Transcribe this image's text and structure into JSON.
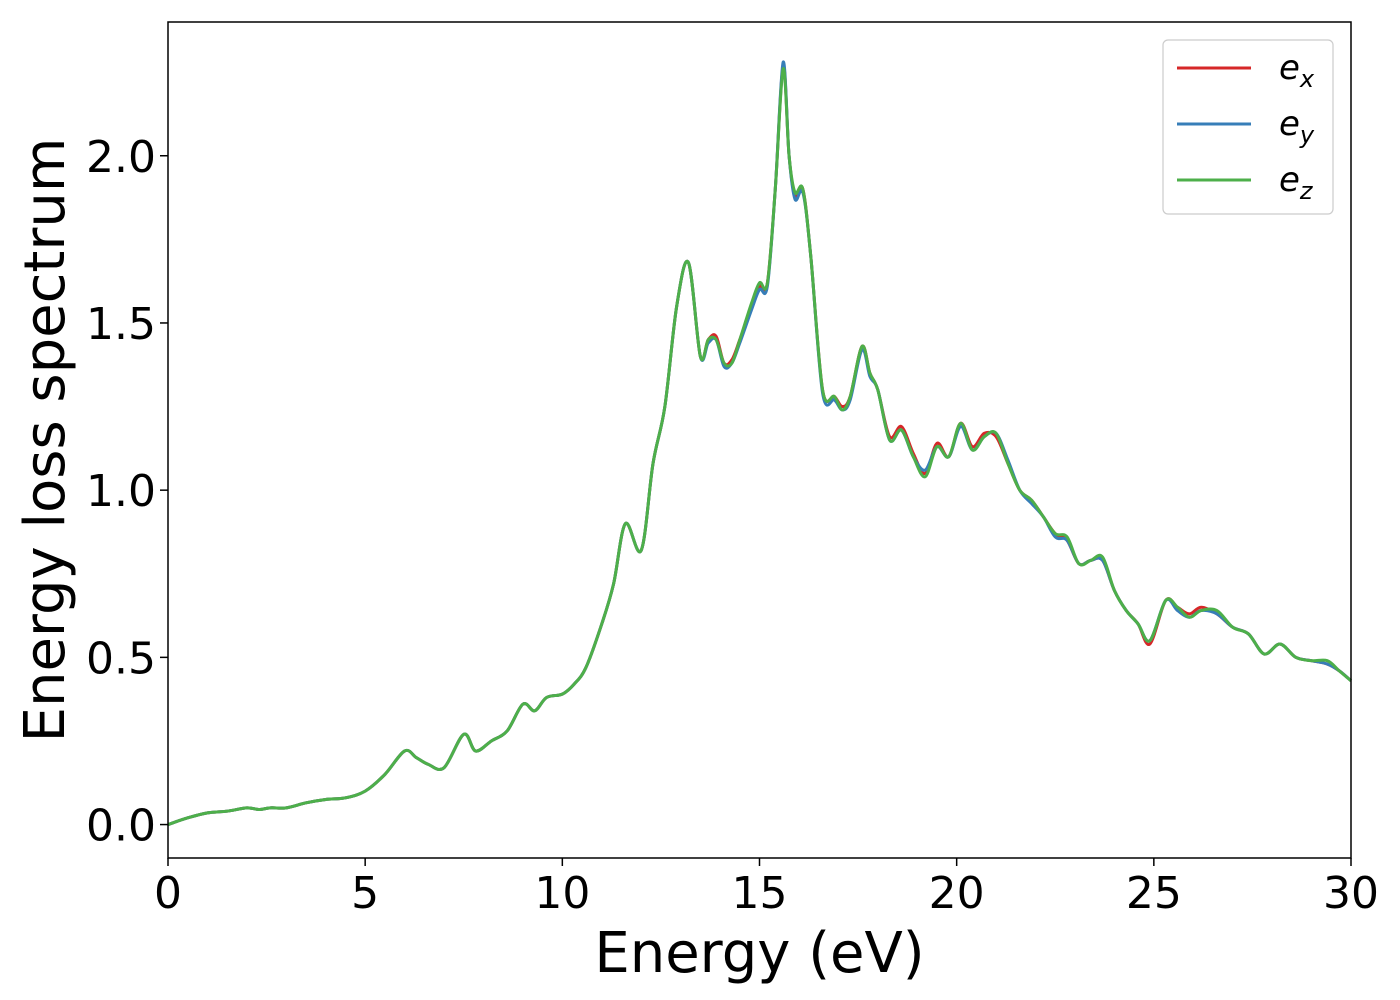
{
  "chart_data": {
    "type": "line",
    "title": "",
    "xlabel": "Energy (eV)",
    "ylabel": "Energy loss spectrum",
    "xlim": [
      0,
      30
    ],
    "ylim": [
      -0.1,
      2.4
    ],
    "xticks": [
      0,
      5,
      10,
      15,
      20,
      25,
      30
    ],
    "xtick_labels": [
      "0",
      "5",
      "10",
      "15",
      "20",
      "25",
      "30"
    ],
    "yticks": [
      0.0,
      0.5,
      1.0,
      1.5,
      2.0
    ],
    "ytick_labels": [
      "0.0",
      "0.5",
      "1.0",
      "1.5",
      "2.0"
    ],
    "grid": false,
    "legend_position": "top-right",
    "x": [
      0,
      0.5,
      1.0,
      1.5,
      2.0,
      2.3,
      2.6,
      3.0,
      3.5,
      4.0,
      4.5,
      5.0,
      5.5,
      6.0,
      6.3,
      6.6,
      7.0,
      7.5,
      7.8,
      8.2,
      8.6,
      9.0,
      9.3,
      9.6,
      10.0,
      10.3,
      10.6,
      11.0,
      11.3,
      11.6,
      12.0,
      12.3,
      12.6,
      12.9,
      13.2,
      13.5,
      13.7,
      13.9,
      14.1,
      14.3,
      14.5,
      14.8,
      15.0,
      15.2,
      15.4,
      15.6,
      15.75,
      15.9,
      16.1,
      16.3,
      16.6,
      16.9,
      17.1,
      17.3,
      17.6,
      17.8,
      18.0,
      18.3,
      18.6,
      18.9,
      19.2,
      19.5,
      19.8,
      20.1,
      20.4,
      20.7,
      21.0,
      21.3,
      21.6,
      21.9,
      22.2,
      22.5,
      22.8,
      23.1,
      23.4,
      23.7,
      24.0,
      24.3,
      24.6,
      24.9,
      25.3,
      25.6,
      25.9,
      26.2,
      26.6,
      27.0,
      27.4,
      27.8,
      28.2,
      28.6,
      29.0,
      29.4,
      29.7,
      30.0
    ],
    "series": [
      {
        "name": "e_x",
        "color": "#d62728",
        "values": [
          0.0,
          0.02,
          0.035,
          0.04,
          0.05,
          0.045,
          0.05,
          0.05,
          0.065,
          0.075,
          0.08,
          0.1,
          0.15,
          0.22,
          0.2,
          0.18,
          0.17,
          0.27,
          0.22,
          0.25,
          0.28,
          0.36,
          0.34,
          0.38,
          0.39,
          0.42,
          0.47,
          0.6,
          0.72,
          0.9,
          0.82,
          1.08,
          1.25,
          1.55,
          1.68,
          1.4,
          1.45,
          1.46,
          1.38,
          1.39,
          1.45,
          1.55,
          1.61,
          1.62,
          1.9,
          2.27,
          2.0,
          1.88,
          1.9,
          1.7,
          1.3,
          1.28,
          1.25,
          1.28,
          1.43,
          1.35,
          1.3,
          1.16,
          1.19,
          1.11,
          1.05,
          1.14,
          1.1,
          1.2,
          1.13,
          1.17,
          1.16,
          1.08,
          1.0,
          0.97,
          0.92,
          0.87,
          0.85,
          0.78,
          0.79,
          0.79,
          0.7,
          0.64,
          0.6,
          0.54,
          0.67,
          0.65,
          0.63,
          0.65,
          0.63,
          0.59,
          0.57,
          0.51,
          0.54,
          0.5,
          0.49,
          0.48,
          0.46,
          0.43
        ]
      },
      {
        "name": "e_y",
        "color": "#377eb8",
        "values": [
          0.0,
          0.02,
          0.035,
          0.04,
          0.05,
          0.045,
          0.05,
          0.05,
          0.065,
          0.075,
          0.08,
          0.1,
          0.15,
          0.22,
          0.2,
          0.18,
          0.17,
          0.27,
          0.22,
          0.25,
          0.28,
          0.36,
          0.34,
          0.38,
          0.39,
          0.42,
          0.47,
          0.6,
          0.72,
          0.9,
          0.82,
          1.08,
          1.25,
          1.55,
          1.68,
          1.4,
          1.44,
          1.45,
          1.37,
          1.38,
          1.44,
          1.54,
          1.6,
          1.61,
          1.9,
          2.28,
          2.0,
          1.87,
          1.89,
          1.7,
          1.29,
          1.27,
          1.24,
          1.27,
          1.42,
          1.34,
          1.3,
          1.15,
          1.18,
          1.1,
          1.06,
          1.13,
          1.1,
          1.19,
          1.12,
          1.16,
          1.17,
          1.09,
          1.0,
          0.96,
          0.92,
          0.86,
          0.85,
          0.78,
          0.79,
          0.79,
          0.7,
          0.64,
          0.6,
          0.55,
          0.67,
          0.64,
          0.62,
          0.64,
          0.63,
          0.59,
          0.57,
          0.51,
          0.54,
          0.5,
          0.49,
          0.48,
          0.46,
          0.43
        ]
      },
      {
        "name": "e_z",
        "color": "#4daf4a",
        "values": [
          0.0,
          0.02,
          0.035,
          0.04,
          0.05,
          0.045,
          0.05,
          0.05,
          0.065,
          0.075,
          0.08,
          0.1,
          0.15,
          0.22,
          0.2,
          0.18,
          0.17,
          0.27,
          0.22,
          0.25,
          0.28,
          0.36,
          0.34,
          0.38,
          0.39,
          0.42,
          0.47,
          0.6,
          0.72,
          0.9,
          0.82,
          1.08,
          1.25,
          1.55,
          1.68,
          1.4,
          1.45,
          1.45,
          1.38,
          1.38,
          1.45,
          1.56,
          1.62,
          1.62,
          1.9,
          2.26,
          2.0,
          1.89,
          1.9,
          1.7,
          1.3,
          1.28,
          1.24,
          1.28,
          1.43,
          1.35,
          1.3,
          1.15,
          1.18,
          1.1,
          1.04,
          1.13,
          1.1,
          1.2,
          1.12,
          1.16,
          1.17,
          1.08,
          1.0,
          0.97,
          0.92,
          0.87,
          0.86,
          0.78,
          0.79,
          0.8,
          0.7,
          0.64,
          0.6,
          0.55,
          0.67,
          0.65,
          0.62,
          0.64,
          0.64,
          0.59,
          0.57,
          0.51,
          0.54,
          0.5,
          0.49,
          0.49,
          0.46,
          0.43
        ]
      }
    ],
    "legend": [
      {
        "symbol": "e",
        "subscript": "x",
        "color": "#d62728"
      },
      {
        "symbol": "e",
        "subscript": "y",
        "color": "#377eb8"
      },
      {
        "symbol": "e",
        "subscript": "z",
        "color": "#4daf4a"
      }
    ]
  }
}
